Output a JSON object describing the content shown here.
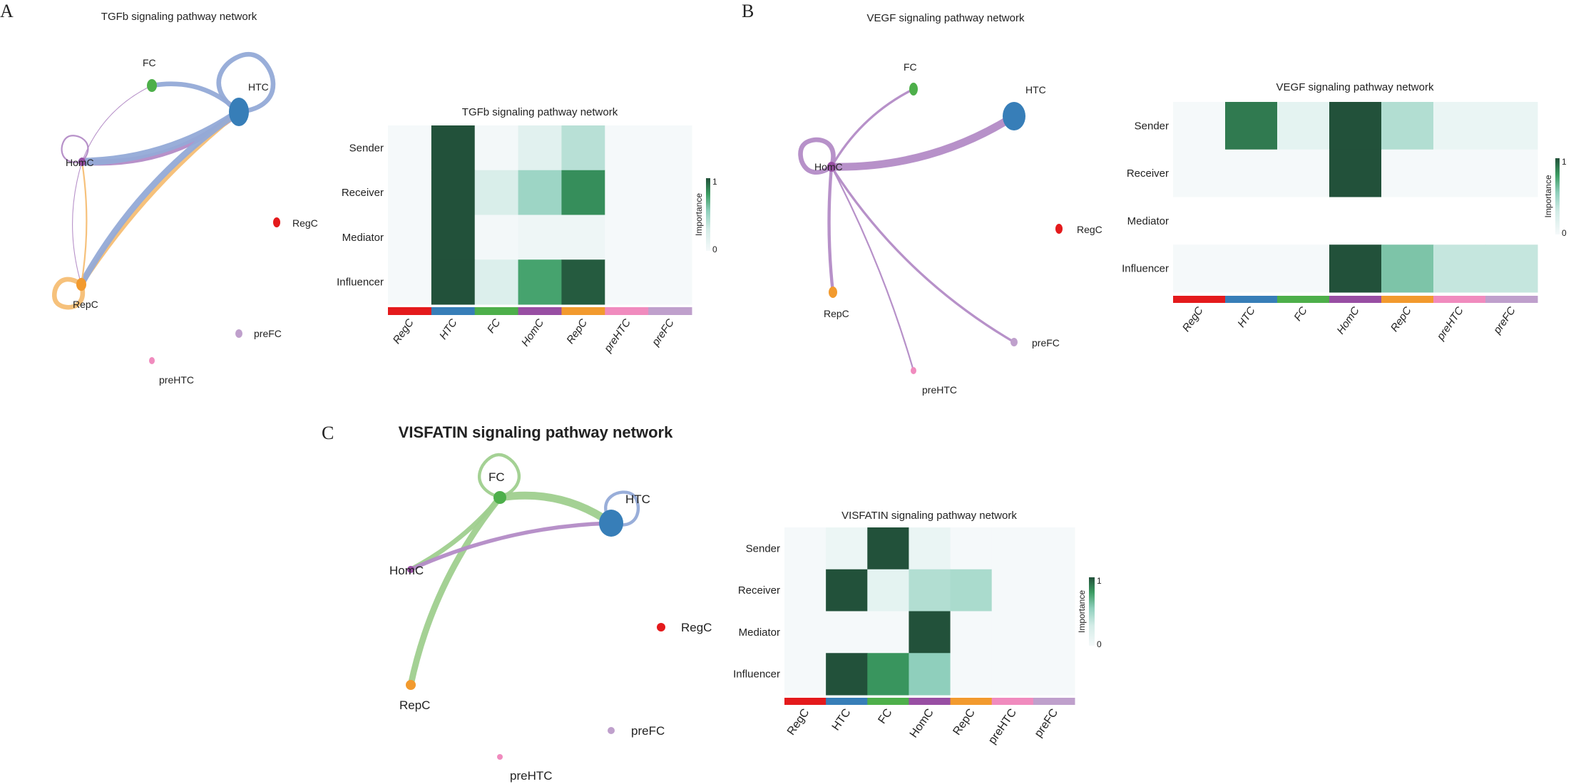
{
  "panels": [
    {
      "letter": "A",
      "network_title": "TGFb signaling pathway network",
      "nodes": [
        "FC",
        "HTC",
        "HomC",
        "RegC",
        "RepC",
        "preFC",
        "preHTC"
      ],
      "edges": [
        {
          "source": "HTC",
          "target": "HTC",
          "weight": 3
        },
        {
          "source": "HTC",
          "target": "FC",
          "weight": 3
        },
        {
          "source": "HomC",
          "target": "HTC",
          "weight": 4
        },
        {
          "source": "HTC",
          "target": "HomC",
          "weight": 5
        },
        {
          "source": "RepC",
          "target": "HTC",
          "weight": 3
        },
        {
          "source": "HTC",
          "target": "RepC",
          "weight": 4
        },
        {
          "source": "HomC",
          "target": "HomC",
          "weight": 1
        },
        {
          "source": "RepC",
          "target": "RepC",
          "weight": 3
        },
        {
          "source": "RepC",
          "target": "HomC",
          "weight": 1
        },
        {
          "source": "HomC",
          "target": "FC",
          "weight": 0.5
        },
        {
          "source": "HomC",
          "target": "RepC",
          "weight": 0.5
        }
      ]
    },
    {
      "letter": "B",
      "network_title": "VEGF signaling pathway network",
      "nodes": [
        "FC",
        "HTC",
        "HomC",
        "RegC",
        "RepC",
        "preFC",
        "preHTC"
      ],
      "edges": [
        {
          "source": "HomC",
          "target": "HomC",
          "weight": 3
        },
        {
          "source": "HomC",
          "target": "FC",
          "weight": 1.5
        },
        {
          "source": "HomC",
          "target": "HTC",
          "weight": 5
        },
        {
          "source": "HomC",
          "target": "RepC",
          "weight": 2
        },
        {
          "source": "HomC",
          "target": "preHTC",
          "weight": 1
        },
        {
          "source": "HomC",
          "target": "preFC",
          "weight": 1.5
        }
      ]
    },
    {
      "letter": "C",
      "network_title": "VISFATIN signaling pathway network",
      "nodes": [
        "FC",
        "HTC",
        "HomC",
        "RegC",
        "RepC",
        "preFC",
        "preHTC"
      ],
      "edges": [
        {
          "source": "FC",
          "target": "FC",
          "weight": 2
        },
        {
          "source": "HTC",
          "target": "HTC",
          "weight": 2
        },
        {
          "source": "FC",
          "target": "HTC",
          "weight": 5
        },
        {
          "source": "FC",
          "target": "HomC",
          "weight": 3
        },
        {
          "source": "FC",
          "target": "RepC",
          "weight": 4
        },
        {
          "source": "HomC",
          "target": "HTC",
          "weight": 2.5
        }
      ]
    }
  ],
  "cell_colors": {
    "RegC": "#E41A1C",
    "HTC": "#377EB8",
    "FC": "#4DAF4A",
    "HomC": "#984EA3",
    "RepC": "#F29A2E",
    "preHTC": "#F08BBE",
    "preFC": "#BFA0CC"
  },
  "edge_colors": {
    "RegC": "#EE8A8B",
    "HTC": "#93AAD7",
    "FC": "#9FCF8E",
    "HomC": "#B38BC6",
    "RepC": "#F6BE74",
    "preHTC": "#F1AACD",
    "preFC": "#CDBADC"
  },
  "chart_data": [
    {
      "type": "heatmap",
      "title": "TGFb signaling pathway network",
      "rows": [
        "Sender",
        "Receiver",
        "Mediator",
        "Influencer"
      ],
      "columns": [
        "RegC",
        "HTC",
        "FC",
        "HomC",
        "RepC",
        "preHTC",
        "preFC"
      ],
      "values": [
        [
          0,
          1,
          0.02,
          0.18,
          0.4,
          0,
          0
        ],
        [
          0,
          1,
          0.25,
          0.5,
          0.82,
          0,
          0
        ],
        [
          0,
          1,
          0.02,
          0.06,
          0.06,
          0,
          0
        ],
        [
          0,
          1,
          0.22,
          0.75,
          0.97,
          0,
          0
        ]
      ],
      "legend": {
        "title": "Importance",
        "min_label": "0",
        "max_label": "1",
        "range": [
          0,
          1
        ],
        "placement": "right"
      }
    },
    {
      "type": "heatmap",
      "title": "VEGF signaling pathway network",
      "rows": [
        "Sender",
        "Receiver",
        "Mediator",
        "Influencer"
      ],
      "columns": [
        "RegC",
        "HTC",
        "FC",
        "HomC",
        "RepC",
        "preHTC",
        "preFC"
      ],
      "values": [
        [
          0,
          0.88,
          0.15,
          1,
          0.42,
          0.1,
          0.1
        ],
        [
          0,
          0,
          0,
          1,
          0,
          0,
          0
        ],
        [
          null,
          null,
          null,
          null,
          null,
          null,
          null
        ],
        [
          0,
          0,
          0,
          1,
          0.6,
          0.35,
          0.35
        ]
      ],
      "legend": {
        "title": "Importance",
        "min_label": "0",
        "max_label": "1",
        "range": [
          0,
          1
        ],
        "placement": "right"
      }
    },
    {
      "type": "heatmap",
      "title": "VISFATIN signaling pathway network",
      "rows": [
        "Sender",
        "Receiver",
        "Mediator",
        "Influencer"
      ],
      "columns": [
        "RegC",
        "HTC",
        "FC",
        "HomC",
        "RepC",
        "preHTC",
        "preFC"
      ],
      "values": [
        [
          0,
          0.08,
          1,
          0.1,
          0,
          0,
          0
        ],
        [
          0,
          1,
          0.15,
          0.42,
          0.45,
          0,
          0
        ],
        [
          0,
          0,
          0,
          1,
          0,
          0,
          0
        ],
        [
          0,
          1,
          0.8,
          0.55,
          0,
          0,
          0
        ]
      ],
      "legend": {
        "title": "Importance",
        "min_label": "0",
        "max_label": "1",
        "range": [
          0,
          1
        ],
        "placement": "right"
      }
    }
  ]
}
